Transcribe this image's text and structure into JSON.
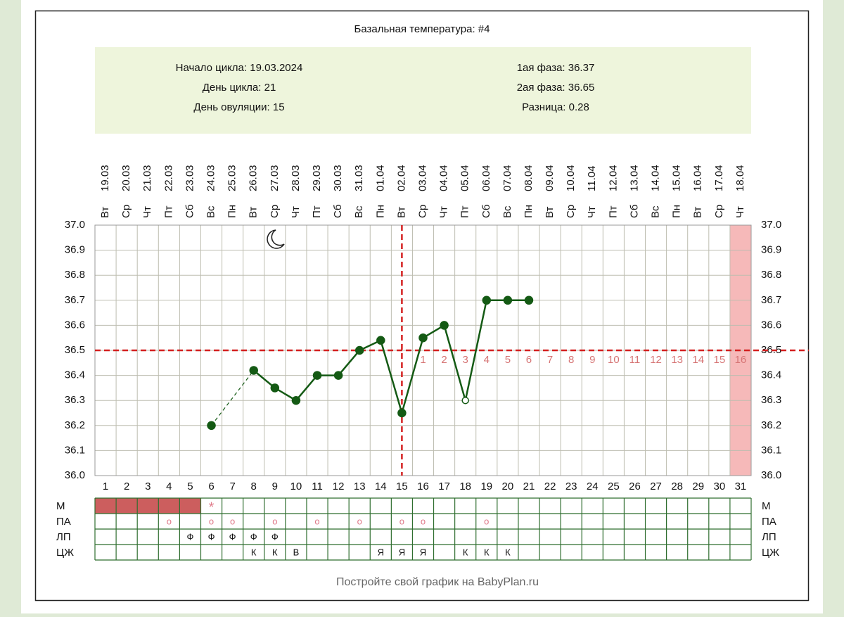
{
  "chart_data": {
    "type": "line",
    "title": "Базальная температура: #4",
    "info": {
      "left": [
        "Начало цикла: 19.03.2024",
        "День цикла: 21",
        "День овуляции: 15"
      ],
      "right": [
        "1ая фаза: 36.37",
        "2ая фаза: 36.65",
        "Разница: 0.28"
      ]
    },
    "x": [
      1,
      2,
      3,
      4,
      5,
      6,
      7,
      8,
      9,
      10,
      11,
      12,
      13,
      14,
      15,
      16,
      17,
      18,
      19,
      20,
      21,
      22,
      23,
      24,
      25,
      26,
      27,
      28,
      29,
      30,
      31
    ],
    "dates": [
      "19.03",
      "20.03",
      "21.03",
      "22.03",
      "23.03",
      "24.03",
      "25.03",
      "26.03",
      "27.03",
      "28.03",
      "29.03",
      "30.03",
      "31.03",
      "01.04",
      "02.04",
      "03.04",
      "04.04",
      "05.04",
      "06.04",
      "07.04",
      "08.04",
      "09.04",
      "10.04",
      "11.04",
      "12.04",
      "13.04",
      "14.04",
      "15.04",
      "16.04",
      "17.04",
      "18.04"
    ],
    "weekdays": [
      "Вт",
      "Ср",
      "Чт",
      "Пт",
      "Сб",
      "Вс",
      "Пн",
      "Вт",
      "Ср",
      "Чт",
      "Пт",
      "Сб",
      "Вс",
      "Пн",
      "Вт",
      "Ср",
      "Чт",
      "Пт",
      "Сб",
      "Вс",
      "Пн",
      "Вт",
      "Ср",
      "Чт",
      "Пт",
      "Сб",
      "Вс",
      "Пн",
      "Вт",
      "Ср",
      "Чт"
    ],
    "series": [
      {
        "color": "#145a14",
        "values": [
          null,
          null,
          null,
          null,
          null,
          36.2,
          null,
          36.42,
          36.35,
          36.3,
          36.4,
          36.4,
          36.5,
          36.54,
          36.25,
          36.55,
          36.6,
          36.3,
          36.7,
          36.7,
          36.7,
          null,
          null,
          null,
          null,
          null,
          null,
          null,
          null,
          null,
          null
        ]
      }
    ],
    "excluded_days": [
      18
    ],
    "ylim": [
      36,
      37
    ],
    "yticks": [
      {
        "value": 36,
        "label": "36.0"
      },
      36.1,
      36.2,
      36.3,
      36.4,
      36.5,
      36.6,
      36.7,
      36.8,
      36.9,
      {
        "value": 37,
        "label": "37.0"
      }
    ],
    "cover_line": 36.5,
    "ovulation_day": 15,
    "guide_color": "#d42020",
    "luteal_start_day": 16,
    "luteal_labels": [
      1,
      2,
      3,
      4,
      5,
      6,
      7,
      8,
      9,
      10,
      11,
      12,
      13,
      14,
      15,
      16
    ],
    "highlight_day": 31,
    "grid": true,
    "table": {
      "rows": [
        {
          "label": "М",
          "filled_days": [
            1,
            2,
            3,
            4,
            5
          ],
          "cells": [
            null,
            null,
            null,
            null,
            null,
            "*",
            null,
            null,
            null,
            null,
            null,
            null,
            null,
            null,
            null,
            null,
            null,
            null,
            null,
            null,
            null,
            null,
            null,
            null,
            null,
            null,
            null,
            null,
            null,
            null,
            null
          ]
        },
        {
          "label": "ПА",
          "cells": [
            null,
            null,
            null,
            "о",
            null,
            "о",
            "о",
            null,
            "о",
            null,
            "о",
            null,
            "о",
            null,
            "о",
            "о",
            null,
            null,
            "о",
            null,
            null,
            null,
            null,
            null,
            null,
            null,
            null,
            null,
            null,
            null,
            null
          ]
        },
        {
          "label": "ЛП",
          "cells": [
            null,
            null,
            null,
            null,
            "Ф",
            "Ф",
            "Ф",
            "Ф",
            "Ф",
            null,
            null,
            null,
            null,
            null,
            null,
            null,
            null,
            null,
            null,
            null,
            null,
            null,
            null,
            null,
            null,
            null,
            null,
            null,
            null,
            null,
            null
          ]
        },
        {
          "label": "ЦЖ",
          "cells": [
            null,
            null,
            null,
            null,
            null,
            null,
            null,
            "К",
            "К",
            "В",
            null,
            null,
            null,
            "Я",
            "Я",
            "Я",
            null,
            "К",
            "К",
            "К",
            null,
            null,
            null,
            null,
            null,
            null,
            null,
            null,
            null,
            null,
            null
          ]
        }
      ]
    },
    "footer": "Постройте свой график на BabyPlan.ru"
  }
}
